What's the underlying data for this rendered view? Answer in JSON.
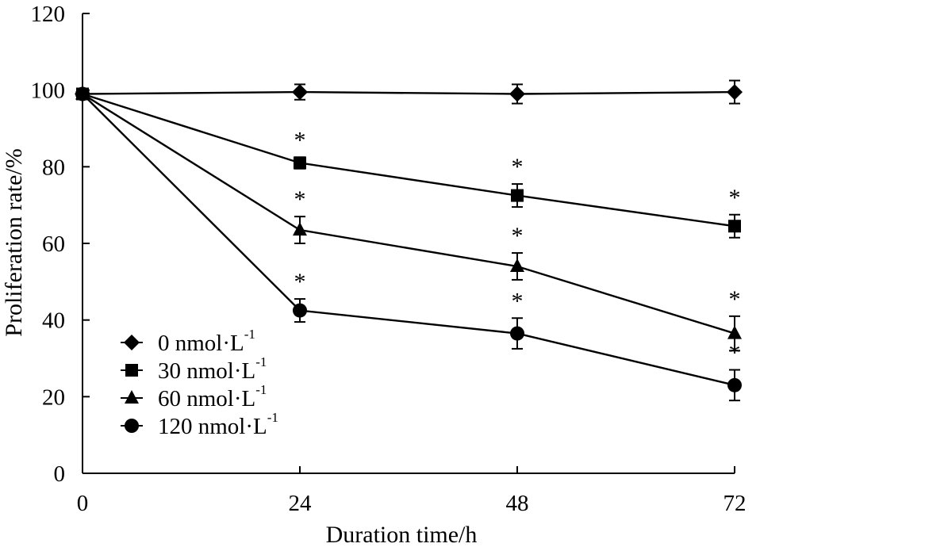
{
  "chart_data": {
    "type": "line",
    "title": "",
    "xlabel": "Duration time/h",
    "ylabel": "Proliferation rate/%",
    "x": [
      0,
      24,
      48,
      72
    ],
    "x_ticks": [
      "0",
      "24",
      "48",
      "72"
    ],
    "xlim": [
      0,
      72
    ],
    "ylim": [
      0,
      120
    ],
    "y_ticks": [
      "0",
      "20",
      "40",
      "60",
      "80",
      "100",
      "120"
    ],
    "grid": false,
    "legend_position": "bottom-left",
    "series": [
      {
        "name": "0 nmol·L",
        "sup": "-1",
        "marker": "diamond",
        "values": [
          99,
          99.5,
          99,
          99.5
        ],
        "errors": [
          0.8,
          2.0,
          2.5,
          3.0
        ],
        "significant": [
          false,
          false,
          false,
          false
        ]
      },
      {
        "name": "30 nmol·L",
        "sup": "-1",
        "marker": "square",
        "values": [
          99,
          81,
          72.5,
          64.5
        ],
        "errors": [
          0.8,
          1.5,
          3.0,
          3.0
        ],
        "significant": [
          false,
          true,
          true,
          true
        ]
      },
      {
        "name": "60 nmol·L",
        "sup": "-1",
        "marker": "triangle",
        "values": [
          99,
          63.5,
          54,
          36.5
        ],
        "errors": [
          0.8,
          3.5,
          3.5,
          4.5
        ],
        "significant": [
          false,
          true,
          true,
          true
        ]
      },
      {
        "name": "120 nmol·L",
        "sup": "-1",
        "marker": "circle",
        "values": [
          99,
          42.5,
          36.5,
          23
        ],
        "errors": [
          0.8,
          3.0,
          4.0,
          4.0
        ],
        "significant": [
          false,
          true,
          true,
          true
        ]
      }
    ],
    "significance_symbol": "*"
  }
}
